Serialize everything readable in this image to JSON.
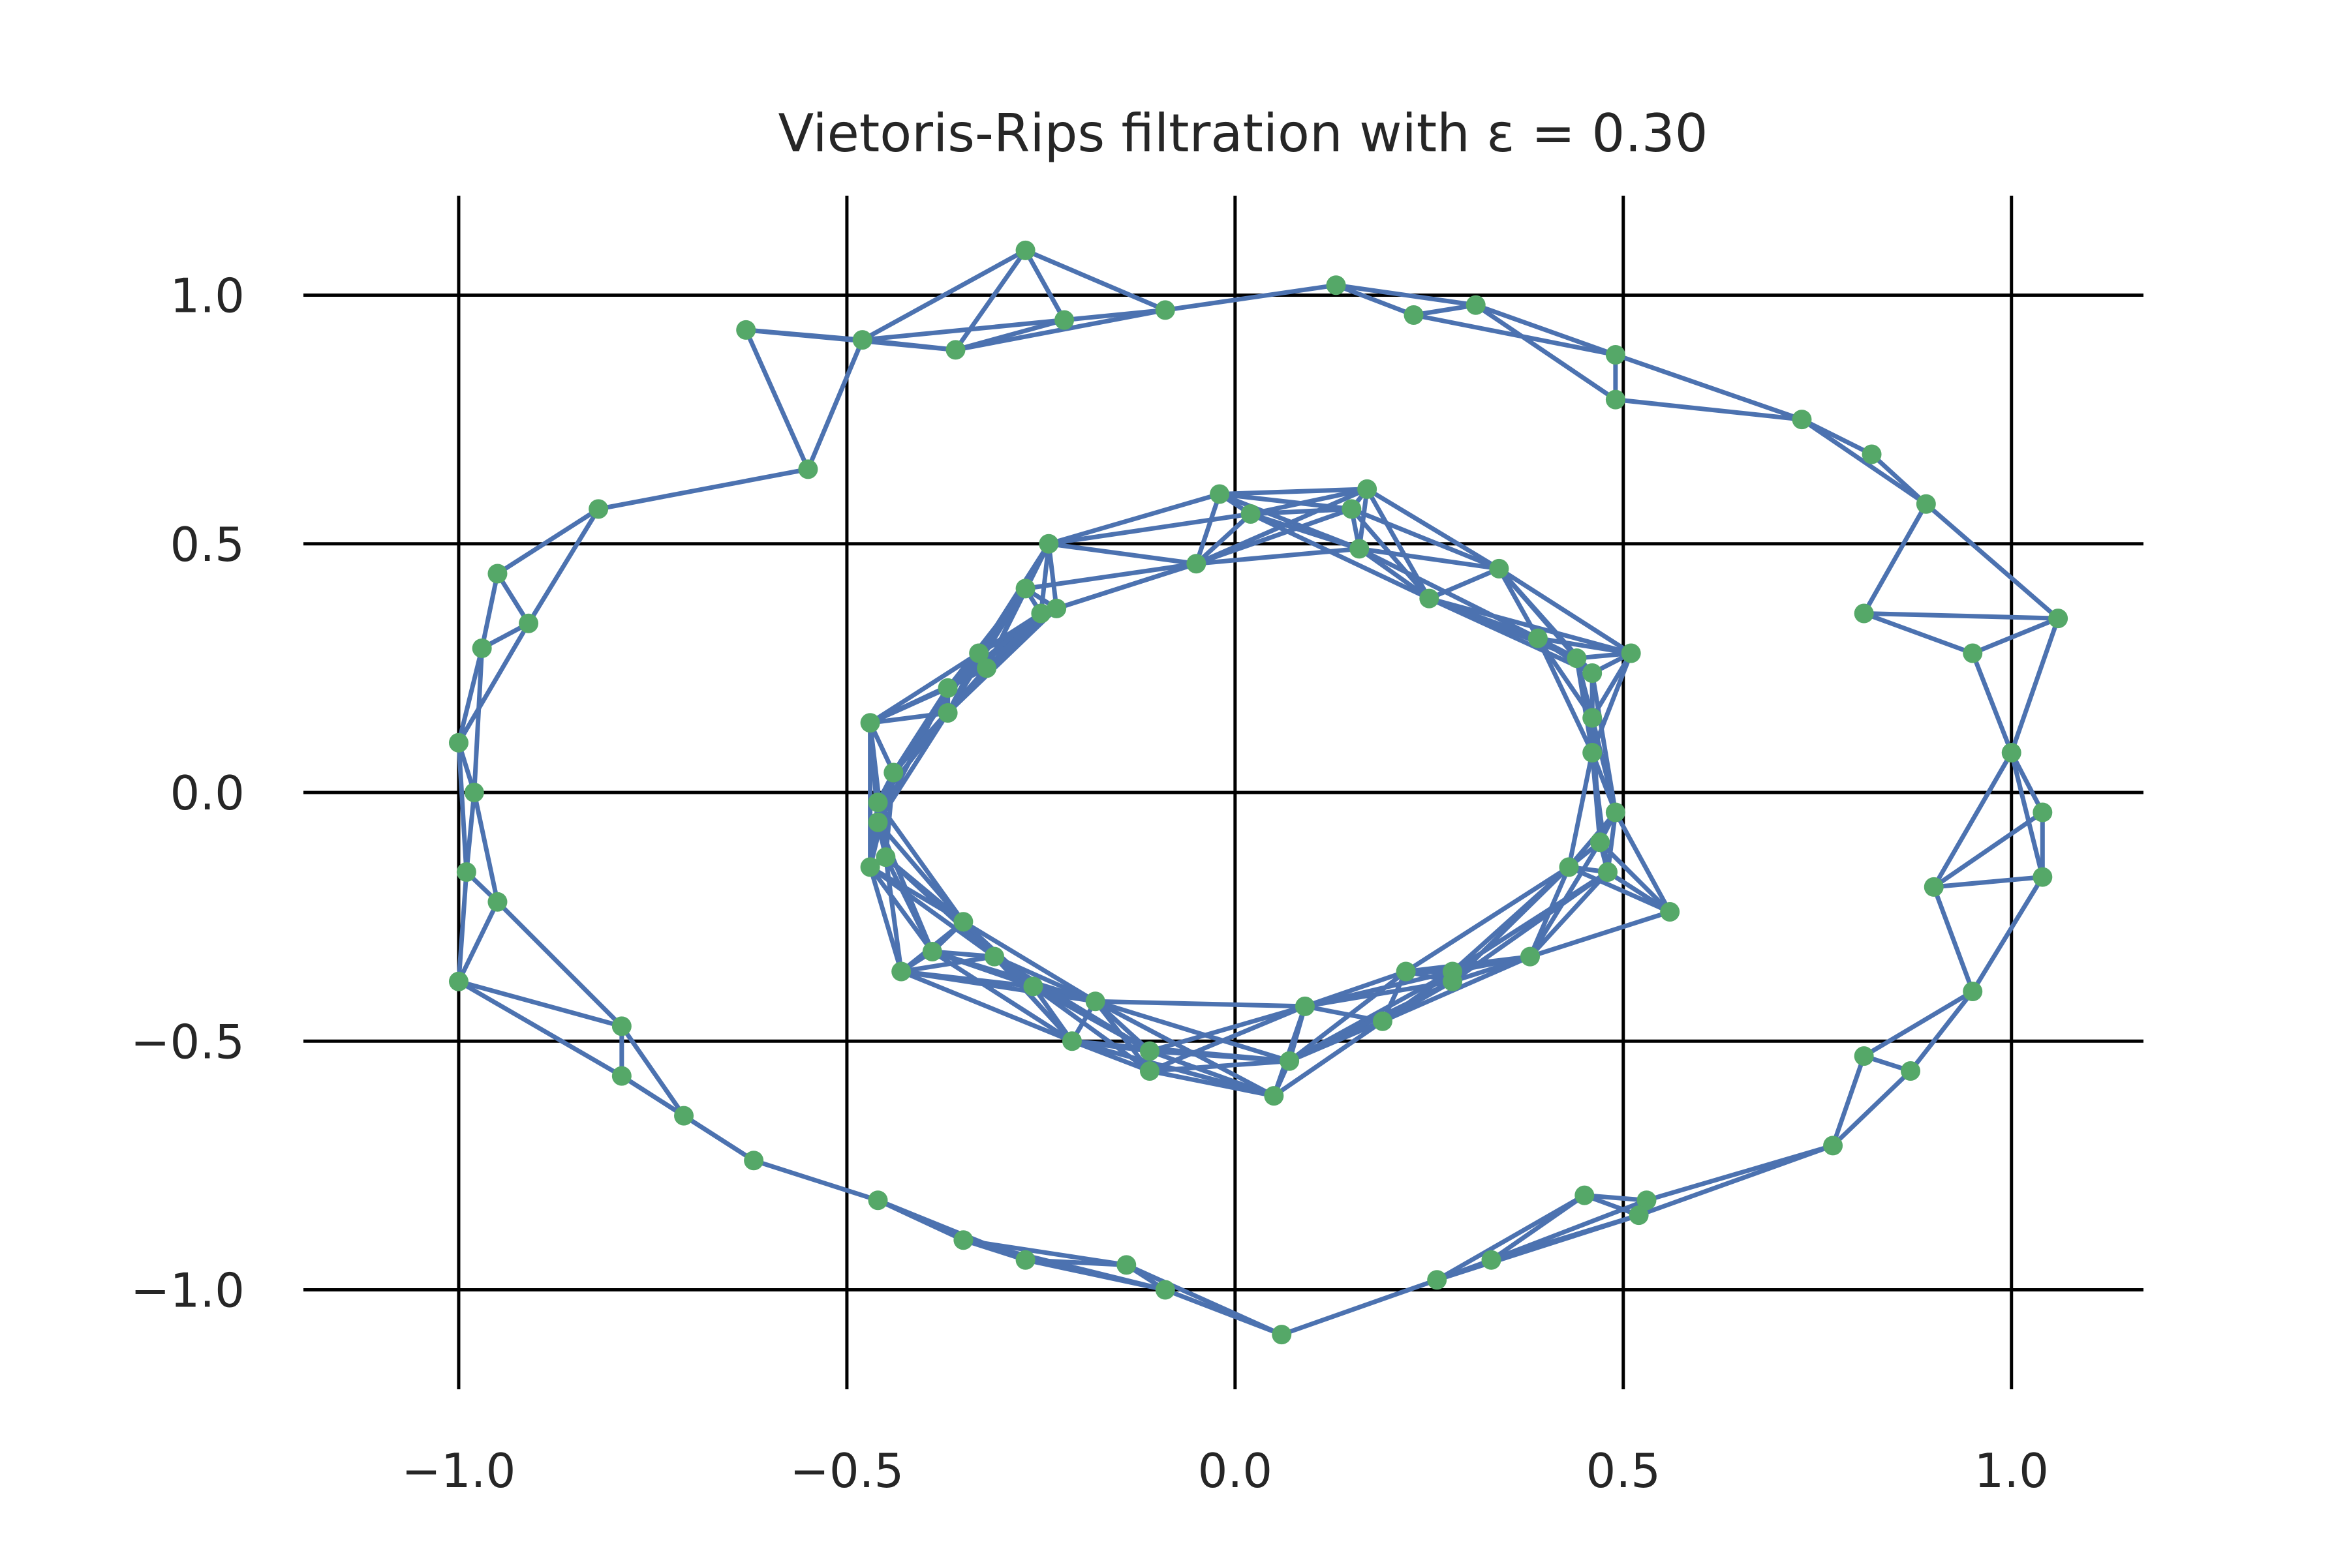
{
  "chart_data": {
    "type": "scatter",
    "title": "Vietoris-Rips filtration with ε = 0.30",
    "xlabel": "",
    "ylabel": "",
    "xlim": [
      -1.2,
      1.17
    ],
    "ylim": [
      -1.2,
      1.2
    ],
    "xticks": [
      -1.0,
      -0.5,
      0.0,
      0.5,
      1.0
    ],
    "yticks": [
      1.0,
      0.5,
      0.0,
      -0.5,
      -1.0
    ],
    "xtick_labels": [
      "−1.0",
      "−0.5",
      "0.0",
      "0.5",
      "1.0"
    ],
    "ytick_labels": [
      "1.0",
      "0.5",
      "0.0",
      "−0.5",
      "−1.0"
    ],
    "grid": true,
    "edge_threshold": 0.3,
    "colors": {
      "points": "#55a868",
      "edges": "#4c72b0",
      "grid": "#000000",
      "text": "#262626"
    },
    "points": [
      [
        0.13,
        1.02
      ],
      [
        0.23,
        0.96
      ],
      [
        0.31,
        0.98
      ],
      [
        0.49,
        0.88
      ],
      [
        0.49,
        0.79
      ],
      [
        0.73,
        0.75
      ],
      [
        0.82,
        0.68
      ],
      [
        0.89,
        0.58
      ],
      [
        0.81,
        0.36
      ],
      [
        0.95,
        0.28
      ],
      [
        1.06,
        0.35
      ],
      [
        1.0,
        0.08
      ],
      [
        1.04,
        -0.04
      ],
      [
        1.04,
        -0.17
      ],
      [
        0.9,
        -0.19
      ],
      [
        0.95,
        -0.4
      ],
      [
        0.81,
        -0.53
      ],
      [
        0.87,
        -0.56
      ],
      [
        0.77,
        -0.71
      ],
      [
        0.53,
        -0.82
      ],
      [
        0.45,
        -0.81
      ],
      [
        0.52,
        -0.85
      ],
      [
        0.33,
        -0.94
      ],
      [
        0.26,
        -0.98
      ],
      [
        -0.27,
        1.09
      ],
      [
        -0.22,
        0.95
      ],
      [
        -0.09,
        0.97
      ],
      [
        -0.36,
        0.89
      ],
      [
        -0.48,
        0.91
      ],
      [
        -0.63,
        0.93
      ],
      [
        -0.55,
        0.65
      ],
      [
        -0.82,
        0.57
      ],
      [
        -0.95,
        0.44
      ],
      [
        -0.91,
        0.34
      ],
      [
        -0.97,
        0.29
      ],
      [
        -1.0,
        0.1
      ],
      [
        -0.98,
        0.0
      ],
      [
        -0.99,
        -0.16
      ],
      [
        -0.95,
        -0.22
      ],
      [
        -1.0,
        -0.38
      ],
      [
        -0.79,
        -0.47
      ],
      [
        -0.79,
        -0.57
      ],
      [
        -0.71,
        -0.65
      ],
      [
        -0.62,
        -0.74
      ],
      [
        -0.46,
        -0.82
      ],
      [
        -0.35,
        -0.9
      ],
      [
        -0.27,
        -0.94
      ],
      [
        -0.14,
        -0.95
      ],
      [
        -0.09,
        -1.0
      ],
      [
        0.06,
        -1.09
      ],
      [
        -0.02,
        0.6
      ],
      [
        0.02,
        0.56
      ],
      [
        0.17,
        0.61
      ],
      [
        0.15,
        0.57
      ],
      [
        0.16,
        0.49
      ],
      [
        -0.05,
        0.46
      ],
      [
        -0.24,
        0.5
      ],
      [
        -0.27,
        0.41
      ],
      [
        -0.23,
        0.37
      ],
      [
        -0.25,
        0.36
      ],
      [
        0.25,
        0.39
      ],
      [
        0.34,
        0.45
      ],
      [
        0.39,
        0.31
      ],
      [
        0.44,
        0.27
      ],
      [
        0.46,
        0.24
      ],
      [
        0.51,
        0.28
      ],
      [
        0.46,
        0.15
      ],
      [
        0.46,
        0.08
      ],
      [
        0.49,
        -0.04
      ],
      [
        0.47,
        -0.1
      ],
      [
        0.48,
        -0.16
      ],
      [
        0.43,
        -0.15
      ],
      [
        0.56,
        -0.24
      ],
      [
        0.38,
        -0.33
      ],
      [
        0.28,
        -0.36
      ],
      [
        0.28,
        -0.38
      ],
      [
        0.22,
        -0.36
      ],
      [
        0.19,
        -0.46
      ],
      [
        0.09,
        -0.43
      ],
      [
        0.07,
        -0.54
      ],
      [
        0.05,
        -0.61
      ],
      [
        -0.11,
        -0.52
      ],
      [
        -0.11,
        -0.56
      ],
      [
        -0.18,
        -0.42
      ],
      [
        -0.21,
        -0.5
      ],
      [
        -0.26,
        -0.39
      ],
      [
        -0.31,
        -0.33
      ],
      [
        -0.35,
        -0.26
      ],
      [
        -0.39,
        -0.32
      ],
      [
        -0.43,
        -0.36
      ],
      [
        -0.47,
        -0.15
      ],
      [
        -0.45,
        -0.13
      ],
      [
        -0.46,
        -0.06
      ],
      [
        -0.46,
        -0.02
      ],
      [
        -0.47,
        0.14
      ],
      [
        -0.44,
        0.04
      ],
      [
        -0.37,
        0.16
      ],
      [
        -0.37,
        0.21
      ],
      [
        -0.32,
        0.25
      ],
      [
        -0.33,
        0.28
      ]
    ]
  }
}
